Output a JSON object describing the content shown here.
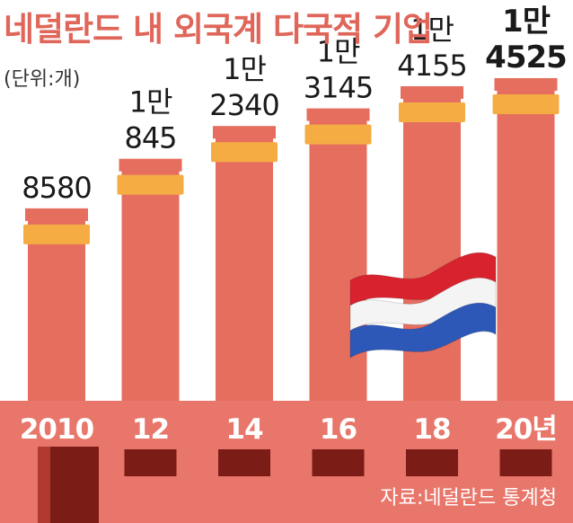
{
  "header": {
    "title": "네덜란드 내 외국계 다국적 기업",
    "unit": "(단위:개)"
  },
  "footer": {
    "source": "자료:네덜란드 통계청"
  },
  "colors": {
    "title": "#e0665a",
    "chimney": "#e56e5f",
    "chimney_cap": "#e56e5f",
    "band": "#f5ad43",
    "factory": "#e8766a",
    "window": "#7c1c16",
    "flag_red": "#d8232f",
    "flag_white": "#f4f4f4",
    "flag_blue": "#2e58b8"
  },
  "chart_data": {
    "type": "bar",
    "categories": [
      "2010",
      "12",
      "14",
      "16",
      "18",
      "20년"
    ],
    "values": [
      8580,
      10845,
      12340,
      13145,
      14155,
      14525
    ],
    "value_labels": [
      [
        "8580"
      ],
      [
        "1만",
        "845"
      ],
      [
        "1만",
        "2340"
      ],
      [
        "1만",
        "3145"
      ],
      [
        "1만",
        "4155"
      ],
      [
        "1만",
        "4525"
      ]
    ],
    "highlight_index": 5,
    "ylim": [
      0,
      16000
    ]
  }
}
